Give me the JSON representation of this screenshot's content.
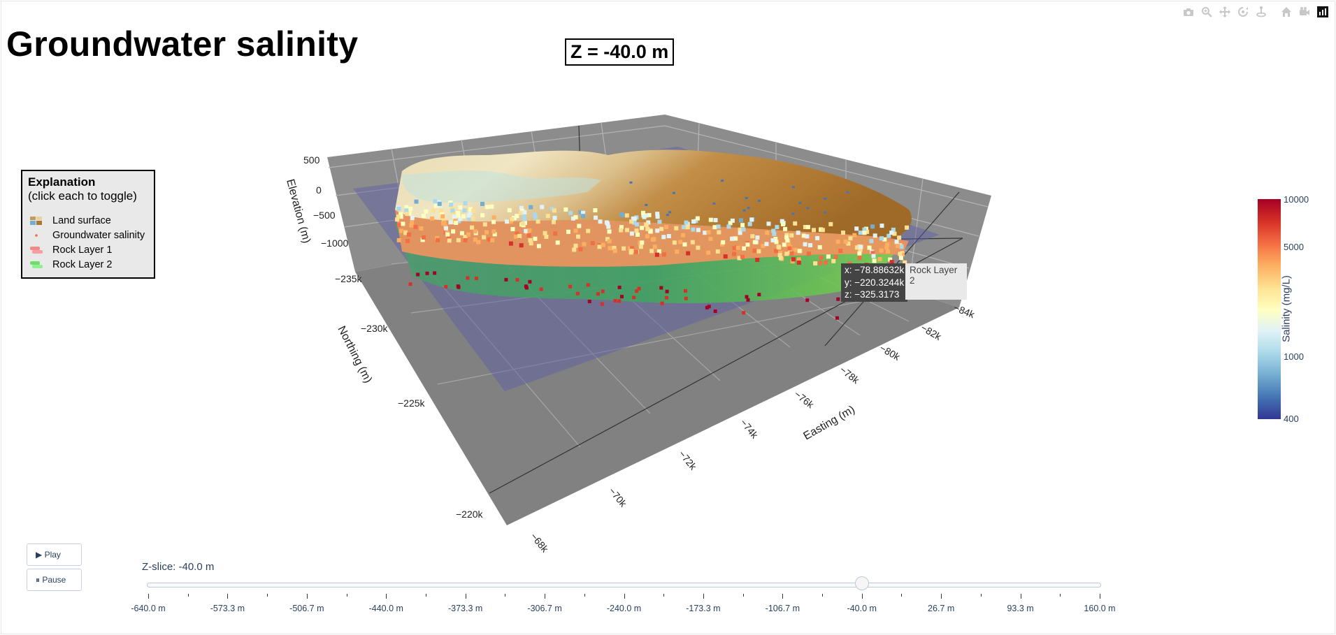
{
  "title": "Groundwater salinity",
  "frame_label": "Z = -40.0 m",
  "modebar": {
    "icons": [
      "camera-icon",
      "zoom-icon",
      "pan-icon",
      "orbit-rotation-icon",
      "turntable-rotation-icon",
      "reset-camera-icon",
      "home-icon",
      "plotly-logo-icon"
    ]
  },
  "legend": {
    "title": "Explanation",
    "subtitle": "(click each to toggle)",
    "items": [
      {
        "label": "Land surface",
        "color": "#c59a5a"
      },
      {
        "label": "Groundwater salinity",
        "color": "#f46d43"
      },
      {
        "label": "Rock Layer 1",
        "color": "#f28a8a"
      },
      {
        "label": "Rock Layer 2",
        "color": "#7fe57f"
      }
    ]
  },
  "hover": {
    "x": "x: −78.88632k",
    "y": "y: −220.3244k",
    "z": "z: −325.3173",
    "trace": "Rock Layer 2"
  },
  "colorbar": {
    "title": "Salinity (mg/L)",
    "ticks": [
      "10000",
      "5000",
      "1000",
      "400"
    ],
    "colors": [
      "#a50026",
      "#d73027",
      "#f46d43",
      "#fdae61",
      "#fee090",
      "#ffffbf",
      "#e0f3f8",
      "#abd9e9",
      "#74add1",
      "#4575b4",
      "#313695"
    ]
  },
  "buttons": {
    "play": "▶ Play",
    "pause": "⏸ Pause"
  },
  "slider": {
    "current_label": "Z-slice: -40.0 m",
    "current_value": -40.0,
    "min": -640.0,
    "max": 160.0,
    "steps": [
      "-640.0 m",
      "-573.3 m",
      "-506.7 m",
      "-440.0 m",
      "-373.3 m",
      "-306.7 m",
      "-240.0 m",
      "-173.3 m",
      "-106.7 m",
      "-40.0 m",
      "26.7 m",
      "93.3 m",
      "160.0 m"
    ]
  },
  "chart_data": {
    "type": "scatter3d",
    "title": "Groundwater salinity",
    "traces": [
      "Land surface",
      "Groundwater salinity",
      "Rock Layer 1",
      "Rock Layer 2"
    ],
    "x_axis": {
      "label": "Easting (m)",
      "ticks": [
        "−68k",
        "−70k",
        "−72k",
        "−74k",
        "−76k",
        "−78k",
        "−80k",
        "−82k",
        "−84k"
      ]
    },
    "y_axis": {
      "label": "Northing (m)",
      "ticks": [
        "−220k",
        "−225k",
        "−230k",
        "−235k"
      ]
    },
    "z_axis": {
      "label": "Elevation (m)",
      "ticks": [
        "500",
        "0",
        "−500",
        "−1000"
      ]
    },
    "z_slice": -40.0,
    "colorscale": "RdYlBu_r",
    "color_range": [
      400,
      10000
    ]
  }
}
